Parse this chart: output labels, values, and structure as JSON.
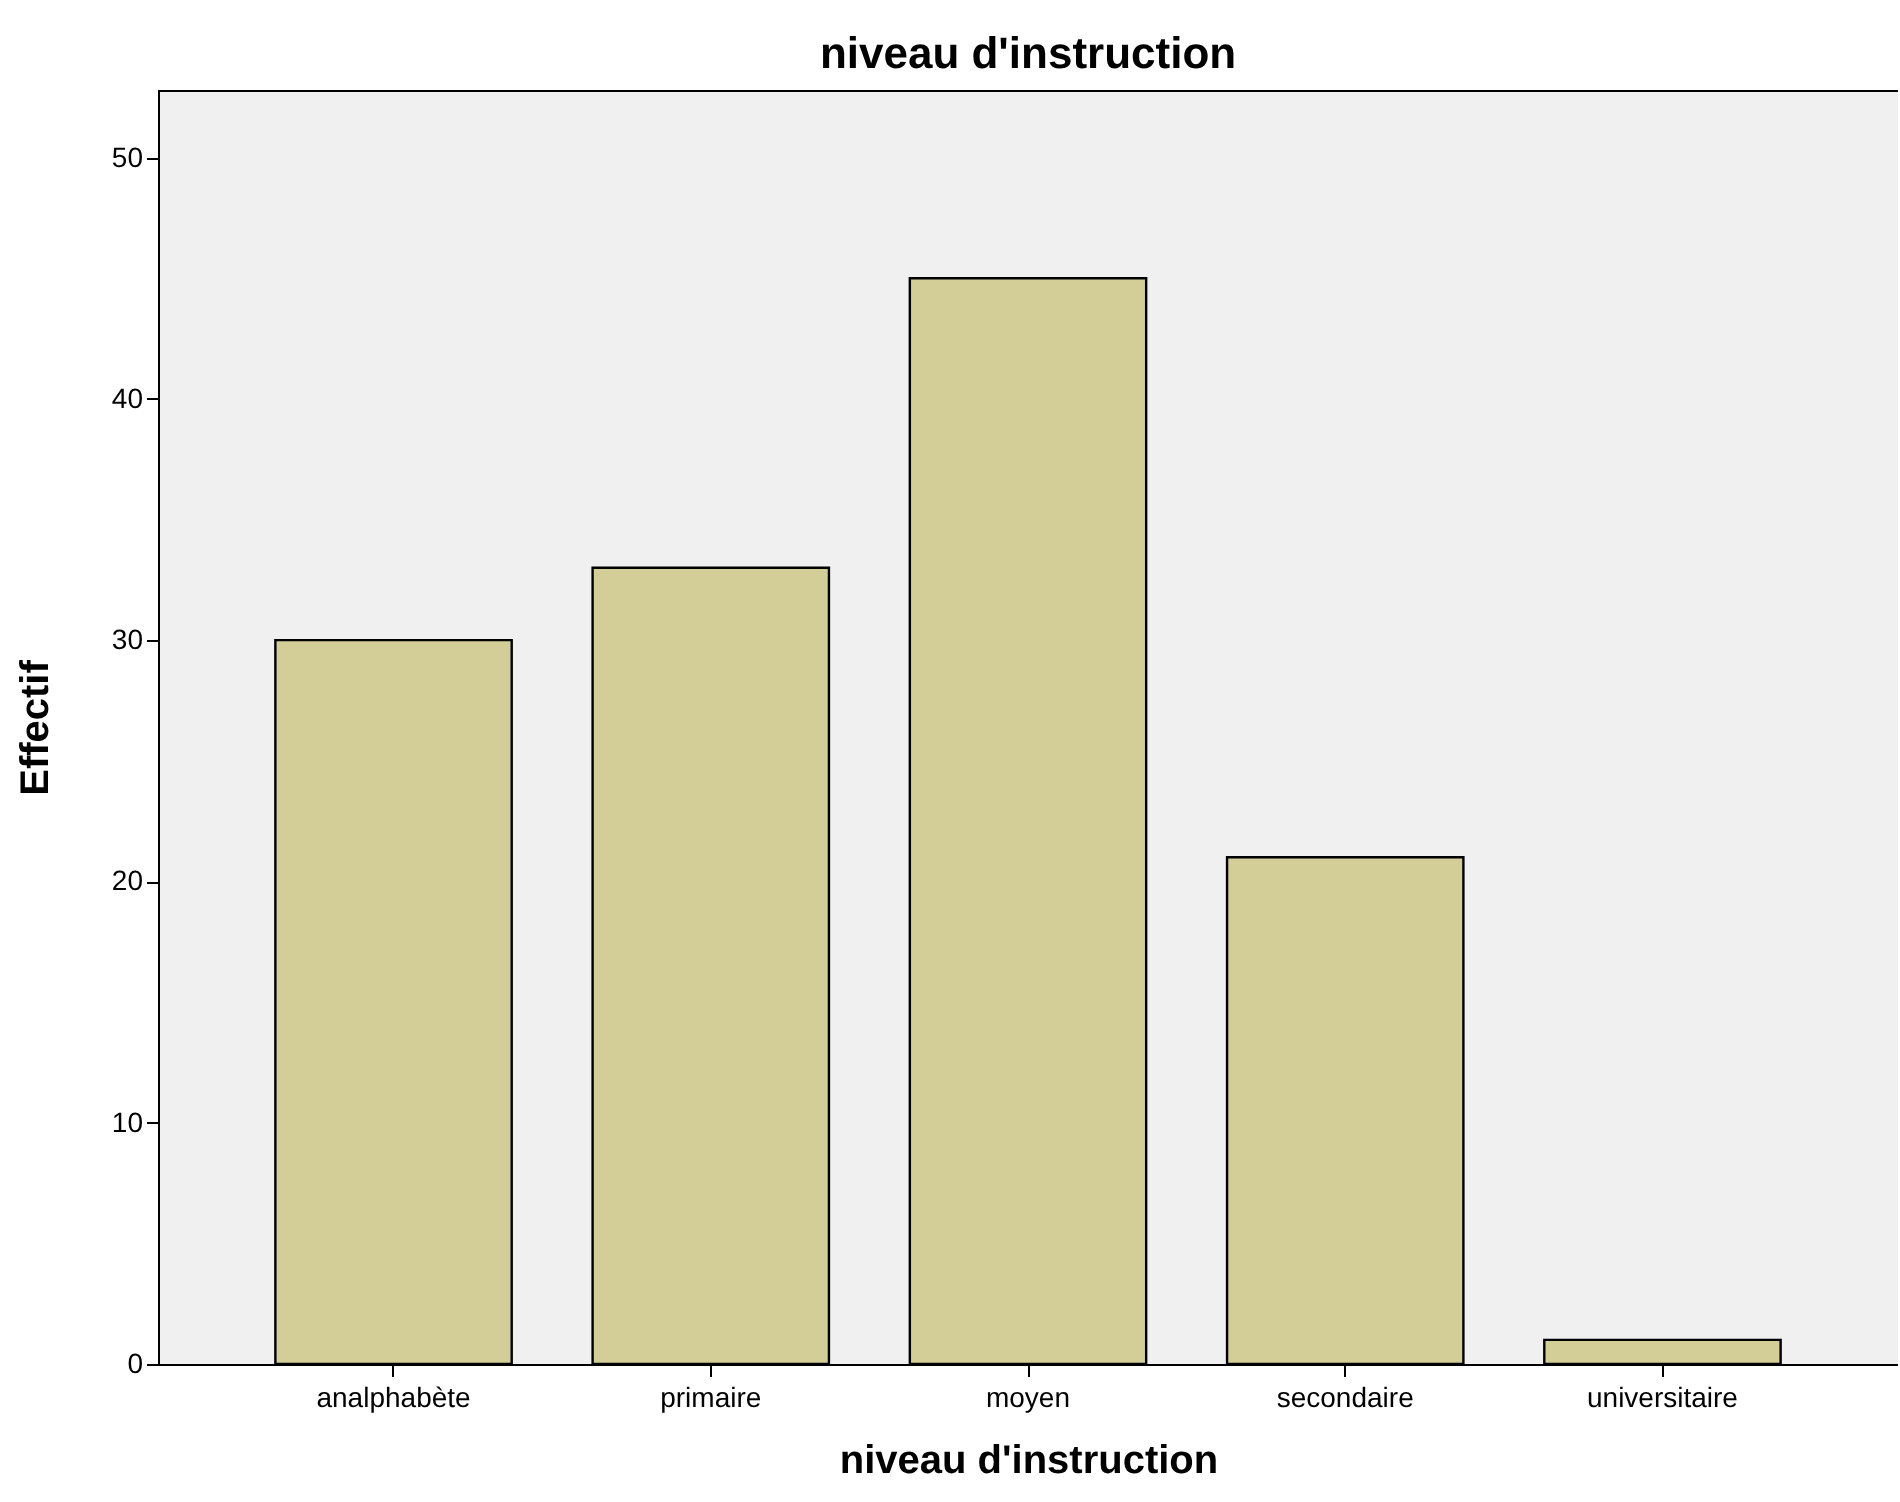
{
  "chart_data": {
    "type": "bar",
    "title": "niveau d'instruction",
    "xlabel": "niveau d'instruction",
    "ylabel": "Effectif",
    "categories": [
      "analphabète",
      "primaire",
      "moyen",
      "secondaire",
      "universitaire"
    ],
    "values": [
      30,
      33,
      45,
      21,
      1
    ],
    "color": "#d3ce97",
    "ylim": [
      0,
      52.8
    ],
    "yticks": [
      0,
      10,
      20,
      30,
      40,
      50
    ],
    "grid": false
  }
}
